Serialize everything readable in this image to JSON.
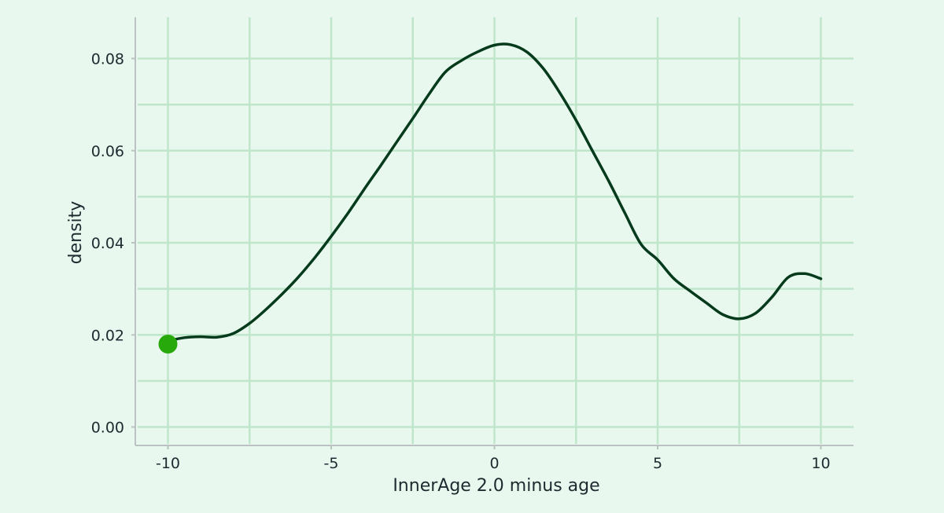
{
  "chart_data": {
    "type": "line",
    "title": "",
    "xlabel": "InnerAge 2.0 minus age",
    "ylabel": "density",
    "xlim": [
      -11.0,
      11.0
    ],
    "ylim": [
      -0.004,
      0.091
    ],
    "x_ticks": [
      -10,
      -5,
      0,
      5,
      10
    ],
    "x_tick_labels": [
      "-10",
      "-5",
      "0",
      "5",
      "10"
    ],
    "y_ticks": [
      0.0,
      0.02,
      0.04,
      0.06,
      0.08
    ],
    "y_tick_labels": [
      "0.00",
      "0.02",
      "0.04",
      "0.06",
      "0.08"
    ],
    "x_minor_gridlines": [
      -7.5,
      -2.5,
      2.5,
      7.5
    ],
    "y_minor_gridlines": [
      0.01,
      0.03,
      0.05,
      0.07
    ],
    "grid": true,
    "series": [
      {
        "x": [
          -10.0,
          -9.5,
          -9.0,
          -8.5,
          -8.0,
          -7.5,
          -7.0,
          -6.5,
          -6.0,
          -5.5,
          -5.0,
          -4.5,
          -4.0,
          -3.5,
          -3.0,
          -2.5,
          -2.0,
          -1.5,
          -1.0,
          -0.5,
          0.0,
          0.5,
          1.0,
          1.5,
          2.0,
          2.5,
          3.0,
          3.5,
          4.0,
          4.5,
          5.0,
          5.5,
          6.0,
          6.5,
          7.0,
          7.5,
          8.0,
          8.5,
          9.0,
          9.5,
          10.0
        ],
        "y": [
          0.0187,
          0.0194,
          0.0196,
          0.0195,
          0.0203,
          0.0225,
          0.0255,
          0.0289,
          0.0326,
          0.0368,
          0.0414,
          0.0463,
          0.0515,
          0.0566,
          0.0618,
          0.067,
          0.0723,
          0.0771,
          0.0796,
          0.0815,
          0.0829,
          0.083,
          0.0814,
          0.0778,
          0.0726,
          0.0666,
          0.06,
          0.0534,
          0.0464,
          0.0396,
          0.0363,
          0.0322,
          0.0295,
          0.0269,
          0.0244,
          0.0235,
          0.0247,
          0.0282,
          0.0325,
          0.0333,
          0.0322
        ],
        "color": "#053b1c"
      }
    ],
    "highlight_point": {
      "x": -10.0,
      "y": 0.018,
      "color": "#27a80b"
    },
    "colors": {
      "background": "#e9f8ee",
      "grid": "#bfe5cb",
      "axis": "#bcc2c4",
      "line": "#053b1c",
      "marker": "#27a80b"
    }
  }
}
